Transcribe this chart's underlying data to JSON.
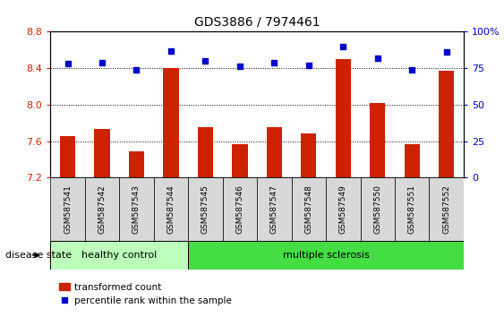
{
  "title": "GDS3886 / 7974461",
  "samples": [
    "GSM587541",
    "GSM587542",
    "GSM587543",
    "GSM587544",
    "GSM587545",
    "GSM587546",
    "GSM587547",
    "GSM587548",
    "GSM587549",
    "GSM587550",
    "GSM587551",
    "GSM587552"
  ],
  "bar_values": [
    7.65,
    7.73,
    7.49,
    8.4,
    7.75,
    7.57,
    7.75,
    7.68,
    8.5,
    8.02,
    7.57,
    8.37
  ],
  "dot_values": [
    78,
    79,
    74,
    87,
    80,
    76,
    79,
    77,
    90,
    82,
    74,
    86
  ],
  "bar_color": "#cc2200",
  "dot_color": "#0000cc",
  "ylim_left": [
    7.2,
    8.8
  ],
  "ylim_right": [
    0,
    100
  ],
  "yticks_left": [
    7.2,
    7.6,
    8.0,
    8.4,
    8.8
  ],
  "yticks_right": [
    0,
    25,
    50,
    75,
    100
  ],
  "ytick_labels_right": [
    "0",
    "25",
    "50",
    "75",
    "100%"
  ],
  "grid_values": [
    7.6,
    8.0,
    8.4
  ],
  "healthy_control_count": 4,
  "group1_label": "healthy control",
  "group2_label": "multiple sclerosis",
  "disease_state_label": "disease state",
  "legend_bar_label": "transformed count",
  "legend_dot_label": "percentile rank within the sample",
  "bar_bottom": 7.2,
  "group1_color": "#bbffbb",
  "group2_color": "#44dd44",
  "label_box_color": "#d8d8d8",
  "bar_width": 0.45,
  "label_fontsize": 6.5,
  "tick_fontsize": 8,
  "title_fontsize": 10
}
